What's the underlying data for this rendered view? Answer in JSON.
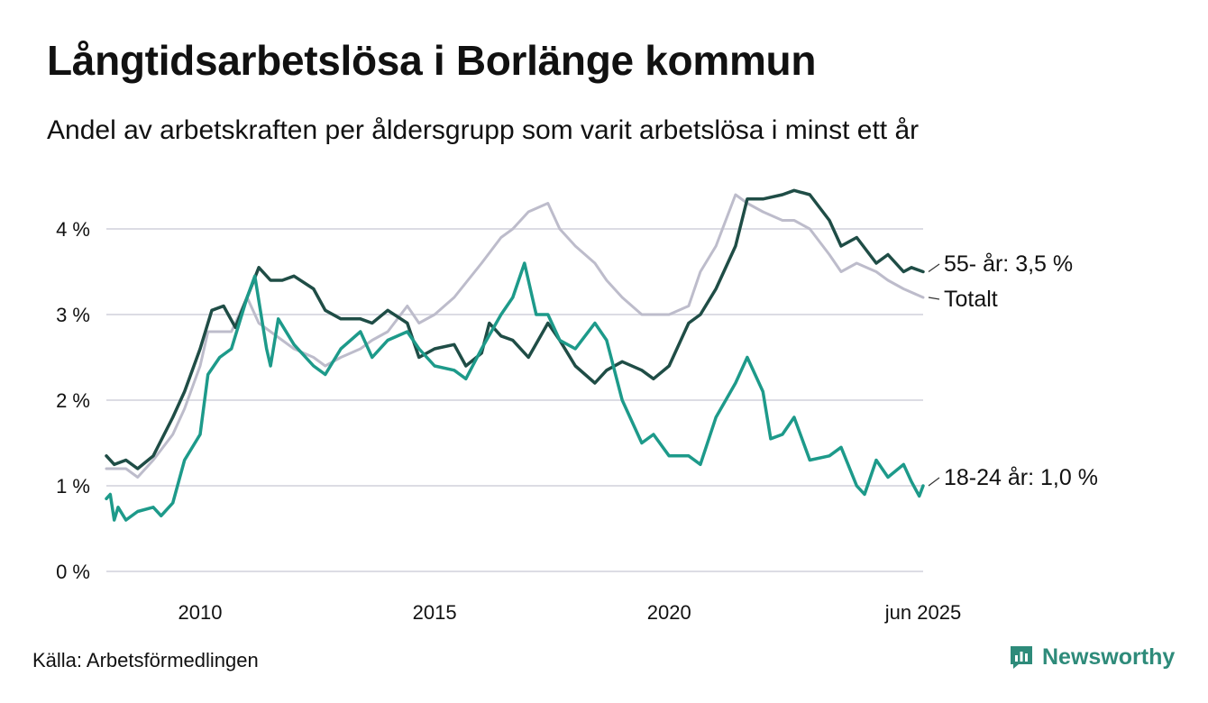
{
  "header": {
    "title": "Långtidsarbetslösa i Borlänge kommun",
    "subtitle": "Andel av arbetskraften per åldersgrupp som varit arbetslösa i minst ett år"
  },
  "footer": {
    "source": "Källa: Arbetsförmedlingen",
    "brand": "Newsworthy",
    "brand_icon": "bar-chart-logo-icon",
    "brand_color": "#2e8b7a"
  },
  "chart_data": {
    "type": "line",
    "title": "Långtidsarbetslösa i Borlänge kommun",
    "subtitle": "Andel av arbetskraften per åldersgrupp som varit arbetslösa i minst ett år",
    "x_range": [
      "2008-01",
      "2025-06"
    ],
    "x_ticks": [
      {
        "x": "2010-01",
        "label": "2010"
      },
      {
        "x": "2015-01",
        "label": "2015"
      },
      {
        "x": "2020-01",
        "label": "2020"
      },
      {
        "x": "2025-06",
        "label": "jun 2025"
      }
    ],
    "y_ticks": [
      {
        "y": 0,
        "label": "0 %"
      },
      {
        "y": 1,
        "label": "1 %"
      },
      {
        "y": 2,
        "label": "2 %"
      },
      {
        "y": 3,
        "label": "3 %"
      },
      {
        "y": 4,
        "label": "4 %"
      }
    ],
    "ylim": [
      0,
      4.6
    ],
    "grid": "horizontal",
    "series": [
      {
        "name": "Totalt",
        "end_label": "Totalt",
        "color": "#bdbccb",
        "points": [
          [
            "2008-01",
            1.2
          ],
          [
            "2008-06",
            1.2
          ],
          [
            "2008-09",
            1.1
          ],
          [
            "2009-01",
            1.3
          ],
          [
            "2009-06",
            1.6
          ],
          [
            "2009-09",
            1.9
          ],
          [
            "2010-01",
            2.4
          ],
          [
            "2010-03",
            2.8
          ],
          [
            "2010-06",
            2.8
          ],
          [
            "2010-09",
            2.8
          ],
          [
            "2011-01",
            3.2
          ],
          [
            "2011-04",
            2.9
          ],
          [
            "2011-07",
            2.8
          ],
          [
            "2011-10",
            2.7
          ],
          [
            "2012-01",
            2.6
          ],
          [
            "2012-06",
            2.5
          ],
          [
            "2012-09",
            2.4
          ],
          [
            "2013-01",
            2.5
          ],
          [
            "2013-06",
            2.6
          ],
          [
            "2013-09",
            2.7
          ],
          [
            "2014-01",
            2.8
          ],
          [
            "2014-06",
            3.1
          ],
          [
            "2014-09",
            2.9
          ],
          [
            "2015-01",
            3.0
          ],
          [
            "2015-06",
            3.2
          ],
          [
            "2016-01",
            3.6
          ],
          [
            "2016-06",
            3.9
          ],
          [
            "2016-09",
            4.0
          ],
          [
            "2017-01",
            4.2
          ],
          [
            "2017-06",
            4.3
          ],
          [
            "2017-09",
            4.0
          ],
          [
            "2018-01",
            3.8
          ],
          [
            "2018-06",
            3.6
          ],
          [
            "2018-09",
            3.4
          ],
          [
            "2019-01",
            3.2
          ],
          [
            "2019-06",
            3.0
          ],
          [
            "2020-01",
            3.0
          ],
          [
            "2020-06",
            3.1
          ],
          [
            "2020-09",
            3.5
          ],
          [
            "2021-01",
            3.8
          ],
          [
            "2021-06",
            4.4
          ],
          [
            "2021-09",
            4.3
          ],
          [
            "2022-01",
            4.2
          ],
          [
            "2022-06",
            4.1
          ],
          [
            "2022-09",
            4.1
          ],
          [
            "2023-01",
            4.0
          ],
          [
            "2023-06",
            3.7
          ],
          [
            "2023-09",
            3.5
          ],
          [
            "2024-01",
            3.6
          ],
          [
            "2024-06",
            3.5
          ],
          [
            "2024-09",
            3.4
          ],
          [
            "2025-01",
            3.3
          ],
          [
            "2025-06",
            3.2
          ]
        ]
      },
      {
        "name": "55- år",
        "end_label": "55- år: 3,5 %",
        "color": "#1f4d46",
        "points": [
          [
            "2008-01",
            1.35
          ],
          [
            "2008-03",
            1.25
          ],
          [
            "2008-06",
            1.3
          ],
          [
            "2008-09",
            1.2
          ],
          [
            "2009-01",
            1.35
          ],
          [
            "2009-06",
            1.8
          ],
          [
            "2009-09",
            2.1
          ],
          [
            "2010-01",
            2.6
          ],
          [
            "2010-04",
            3.05
          ],
          [
            "2010-07",
            3.1
          ],
          [
            "2010-10",
            2.85
          ],
          [
            "2011-01",
            3.2
          ],
          [
            "2011-04",
            3.55
          ],
          [
            "2011-07",
            3.4
          ],
          [
            "2011-10",
            3.4
          ],
          [
            "2012-01",
            3.45
          ],
          [
            "2012-06",
            3.3
          ],
          [
            "2012-09",
            3.05
          ],
          [
            "2013-01",
            2.95
          ],
          [
            "2013-06",
            2.95
          ],
          [
            "2013-09",
            2.9
          ],
          [
            "2014-01",
            3.05
          ],
          [
            "2014-06",
            2.9
          ],
          [
            "2014-09",
            2.5
          ],
          [
            "2015-01",
            2.6
          ],
          [
            "2015-06",
            2.65
          ],
          [
            "2015-09",
            2.4
          ],
          [
            "2016-01",
            2.55
          ],
          [
            "2016-03",
            2.9
          ],
          [
            "2016-06",
            2.75
          ],
          [
            "2016-09",
            2.7
          ],
          [
            "2017-01",
            2.5
          ],
          [
            "2017-06",
            2.9
          ],
          [
            "2017-09",
            2.7
          ],
          [
            "2018-01",
            2.4
          ],
          [
            "2018-06",
            2.2
          ],
          [
            "2018-09",
            2.35
          ],
          [
            "2019-01",
            2.45
          ],
          [
            "2019-06",
            2.35
          ],
          [
            "2019-09",
            2.25
          ],
          [
            "2020-01",
            2.4
          ],
          [
            "2020-06",
            2.9
          ],
          [
            "2020-09",
            3.0
          ],
          [
            "2021-01",
            3.3
          ],
          [
            "2021-06",
            3.8
          ],
          [
            "2021-09",
            4.35
          ],
          [
            "2022-01",
            4.35
          ],
          [
            "2022-06",
            4.4
          ],
          [
            "2022-09",
            4.45
          ],
          [
            "2023-01",
            4.4
          ],
          [
            "2023-06",
            4.1
          ],
          [
            "2023-09",
            3.8
          ],
          [
            "2024-01",
            3.9
          ],
          [
            "2024-06",
            3.6
          ],
          [
            "2024-09",
            3.7
          ],
          [
            "2025-01",
            3.5
          ],
          [
            "2025-03",
            3.55
          ],
          [
            "2025-06",
            3.5
          ]
        ]
      },
      {
        "name": "18-24 år",
        "end_label": "18-24 år: 1,0 %",
        "color": "#1d9a8a",
        "points": [
          [
            "2008-01",
            0.85
          ],
          [
            "2008-02",
            0.9
          ],
          [
            "2008-03",
            0.6
          ],
          [
            "2008-04",
            0.75
          ],
          [
            "2008-06",
            0.6
          ],
          [
            "2008-09",
            0.7
          ],
          [
            "2009-01",
            0.75
          ],
          [
            "2009-03",
            0.65
          ],
          [
            "2009-06",
            0.8
          ],
          [
            "2009-09",
            1.3
          ],
          [
            "2010-01",
            1.6
          ],
          [
            "2010-03",
            2.3
          ],
          [
            "2010-06",
            2.5
          ],
          [
            "2010-09",
            2.6
          ],
          [
            "2011-01",
            3.2
          ],
          [
            "2011-03",
            3.45
          ],
          [
            "2011-06",
            2.6
          ],
          [
            "2011-07",
            2.4
          ],
          [
            "2011-09",
            2.95
          ],
          [
            "2012-01",
            2.65
          ],
          [
            "2012-06",
            2.4
          ],
          [
            "2012-09",
            2.3
          ],
          [
            "2013-01",
            2.6
          ],
          [
            "2013-06",
            2.8
          ],
          [
            "2013-09",
            2.5
          ],
          [
            "2014-01",
            2.7
          ],
          [
            "2014-06",
            2.8
          ],
          [
            "2014-09",
            2.6
          ],
          [
            "2015-01",
            2.4
          ],
          [
            "2015-06",
            2.35
          ],
          [
            "2015-09",
            2.25
          ],
          [
            "2016-01",
            2.6
          ],
          [
            "2016-06",
            3.0
          ],
          [
            "2016-09",
            3.2
          ],
          [
            "2016-12",
            3.6
          ],
          [
            "2017-03",
            3.0
          ],
          [
            "2017-06",
            3.0
          ],
          [
            "2017-09",
            2.7
          ],
          [
            "2018-01",
            2.6
          ],
          [
            "2018-06",
            2.9
          ],
          [
            "2018-09",
            2.7
          ],
          [
            "2019-01",
            2.0
          ],
          [
            "2019-06",
            1.5
          ],
          [
            "2019-09",
            1.6
          ],
          [
            "2020-01",
            1.35
          ],
          [
            "2020-06",
            1.35
          ],
          [
            "2020-09",
            1.25
          ],
          [
            "2021-01",
            1.8
          ],
          [
            "2021-06",
            2.2
          ],
          [
            "2021-09",
            2.5
          ],
          [
            "2022-01",
            2.1
          ],
          [
            "2022-03",
            1.55
          ],
          [
            "2022-06",
            1.6
          ],
          [
            "2022-09",
            1.8
          ],
          [
            "2023-01",
            1.3
          ],
          [
            "2023-06",
            1.35
          ],
          [
            "2023-09",
            1.45
          ],
          [
            "2024-01",
            1.0
          ],
          [
            "2024-03",
            0.9
          ],
          [
            "2024-06",
            1.3
          ],
          [
            "2024-09",
            1.1
          ],
          [
            "2025-01",
            1.25
          ],
          [
            "2025-03",
            1.05
          ],
          [
            "2025-05",
            0.88
          ],
          [
            "2025-06",
            1.0
          ]
        ]
      }
    ]
  }
}
